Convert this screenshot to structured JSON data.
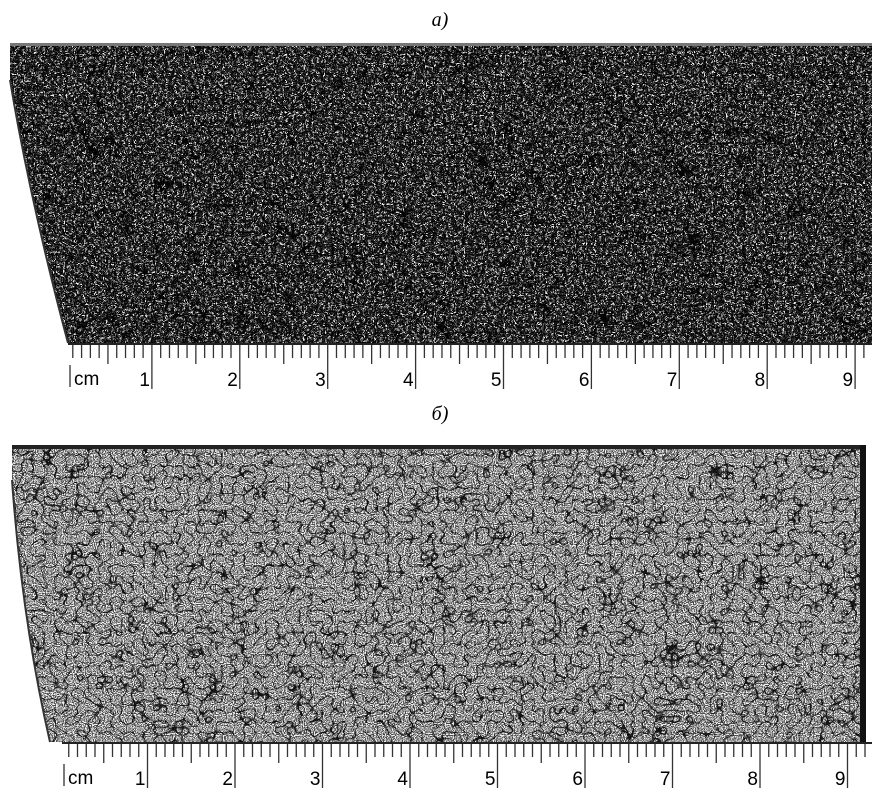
{
  "panels": [
    {
      "label": "a)",
      "ruler": {
        "unit": "cm",
        "numbers": [
          "1",
          "2",
          "3",
          "4",
          "5",
          "6",
          "7",
          "8",
          "9"
        ]
      }
    },
    {
      "label": "б)",
      "ruler": {
        "unit": "cm",
        "numbers": [
          "1",
          "2",
          "3",
          "4",
          "5",
          "6",
          "7",
          "8",
          "9"
        ]
      }
    }
  ]
}
